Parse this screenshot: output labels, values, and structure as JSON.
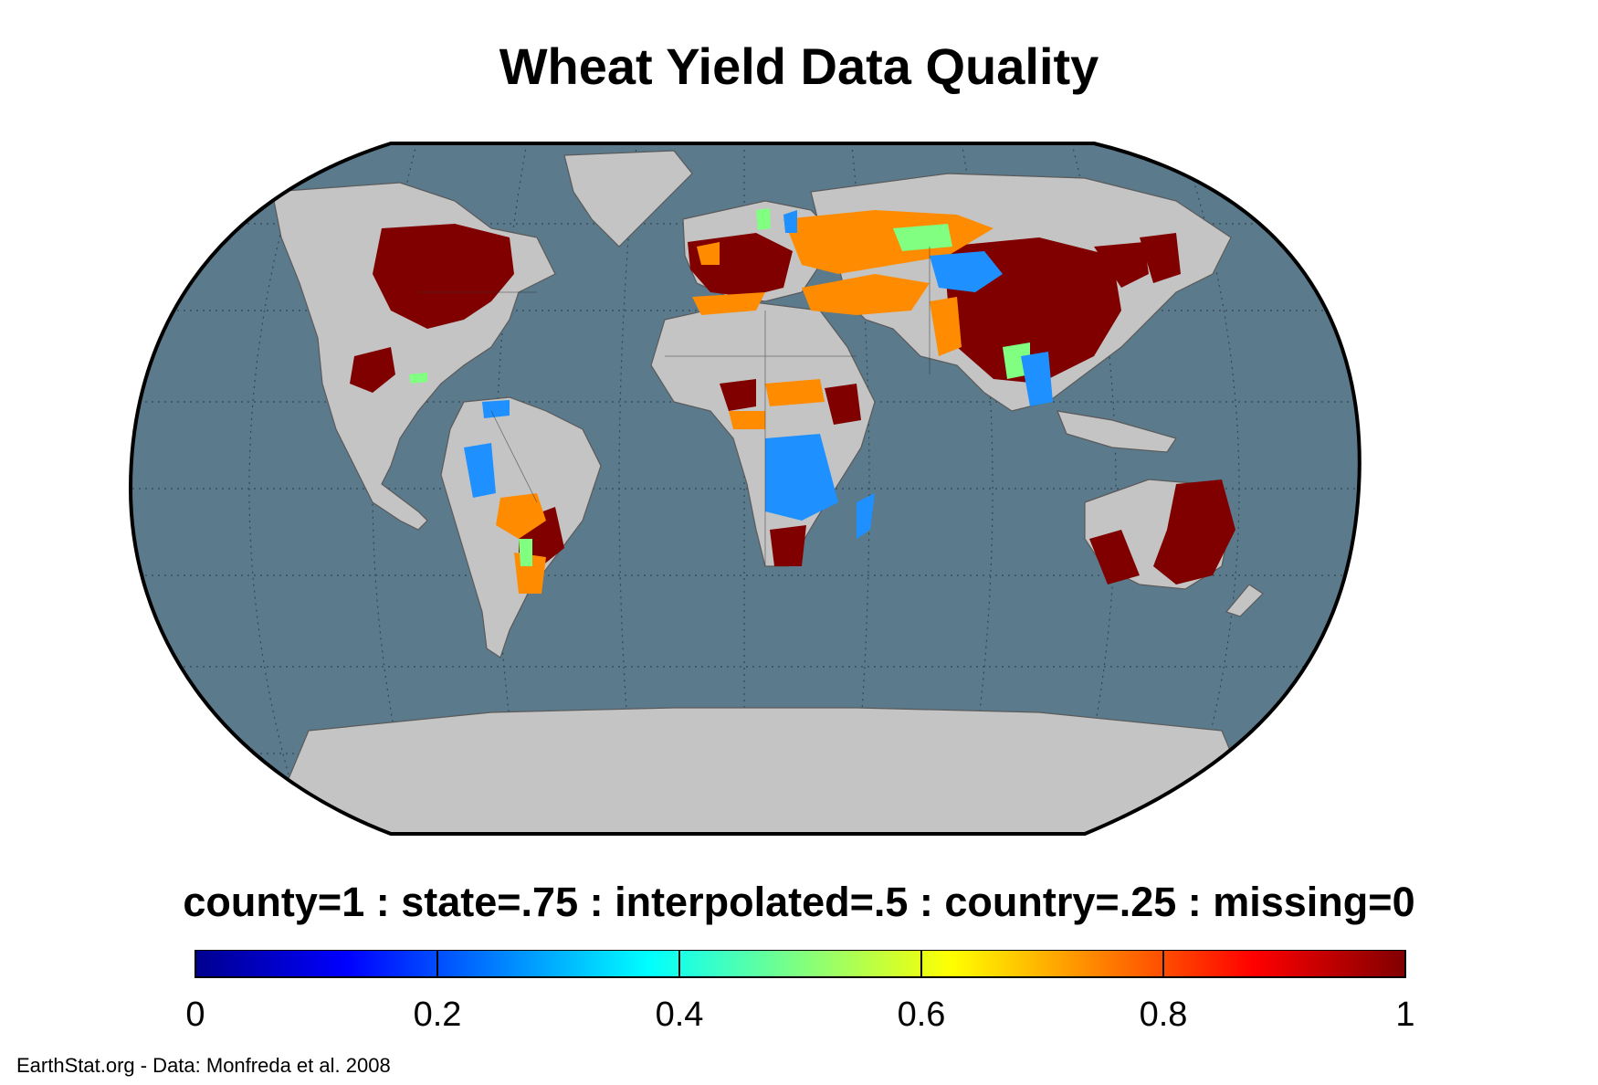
{
  "title": "Wheat Yield Data Quality",
  "legend_heading": "county=1 : state=.75 : interpolated=.5 : country=.25 : missing=0",
  "colorbar": {
    "min": 0,
    "max": 1,
    "ticks": [
      "0",
      "0.2",
      "0.4",
      "0.6",
      "0.8",
      "1"
    ],
    "colors": [
      "#00008f",
      "#0000ff",
      "#0080ff",
      "#00ffff",
      "#80ff80",
      "#ffff00",
      "#ff8000",
      "#ff0000",
      "#800000"
    ]
  },
  "map": {
    "projection": "Robinson",
    "ocean_color": "#5b7a8c",
    "land_color": "#c4c4c4",
    "graticule": true,
    "value_colors": {
      "county": "#800000",
      "state": "#ff8c00",
      "interpolated": "#80ff80",
      "country": "#1e90ff"
    }
  },
  "credit": "EarthStat.org - Data: Monfreda et al. 2008"
}
